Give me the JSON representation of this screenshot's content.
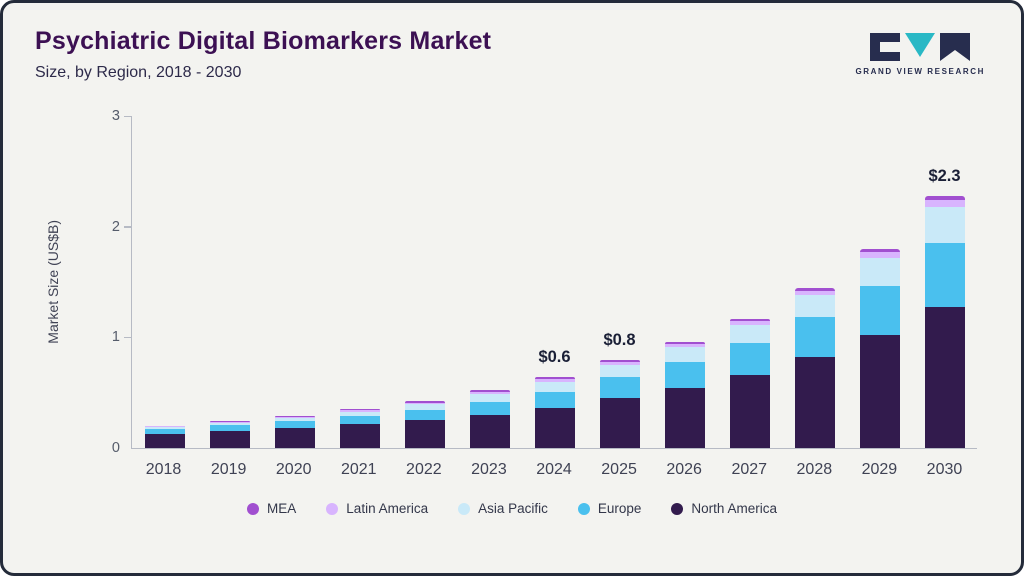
{
  "logo": {
    "text": "GRAND VIEW RESEARCH"
  },
  "chart_data": {
    "type": "bar",
    "stacked": true,
    "title": "Psychiatric Digital Biomarkers Market",
    "subtitle": "Size, by Region, 2018 - 2030",
    "ylabel": "Market Size (US$B)",
    "ylim": [
      0,
      3
    ],
    "yticks": [
      0,
      1,
      2,
      3
    ],
    "grid": false,
    "legend_position": "bottom",
    "categories": [
      "2018",
      "2019",
      "2020",
      "2021",
      "2022",
      "2023",
      "2024",
      "2025",
      "2026",
      "2027",
      "2028",
      "2029",
      "2030"
    ],
    "series": [
      {
        "name": "North America",
        "color": "#321b4d",
        "values": [
          0.13,
          0.155,
          0.185,
          0.215,
          0.255,
          0.3,
          0.36,
          0.45,
          0.54,
          0.66,
          0.82,
          1.02,
          1.27
        ]
      },
      {
        "name": "Europe",
        "color": "#4ac0ee",
        "values": [
          0.04,
          0.05,
          0.06,
          0.075,
          0.09,
          0.12,
          0.15,
          0.19,
          0.24,
          0.29,
          0.36,
          0.44,
          0.58
        ]
      },
      {
        "name": "Asia Pacific",
        "color": "#c9e9f8",
        "values": [
          0.02,
          0.025,
          0.03,
          0.04,
          0.05,
          0.07,
          0.09,
          0.11,
          0.13,
          0.16,
          0.2,
          0.26,
          0.33
        ]
      },
      {
        "name": "Latin America",
        "color": "#d8b4fe",
        "values": [
          0.006,
          0.008,
          0.01,
          0.012,
          0.015,
          0.018,
          0.022,
          0.026,
          0.03,
          0.035,
          0.04,
          0.05,
          0.06
        ]
      },
      {
        "name": "MEA",
        "color": "#a14fd0",
        "values": [
          0.004,
          0.006,
          0.008,
          0.01,
          0.012,
          0.014,
          0.016,
          0.018,
          0.02,
          0.025,
          0.028,
          0.032,
          0.04
        ]
      }
    ],
    "legend_order": [
      "MEA",
      "Latin America",
      "Asia Pacific",
      "Europe",
      "North America"
    ],
    "annotations": [
      {
        "category": "2024",
        "text": "$0.6"
      },
      {
        "category": "2025",
        "text": "$0.8"
      },
      {
        "category": "2030",
        "text": "$2.3"
      }
    ]
  }
}
